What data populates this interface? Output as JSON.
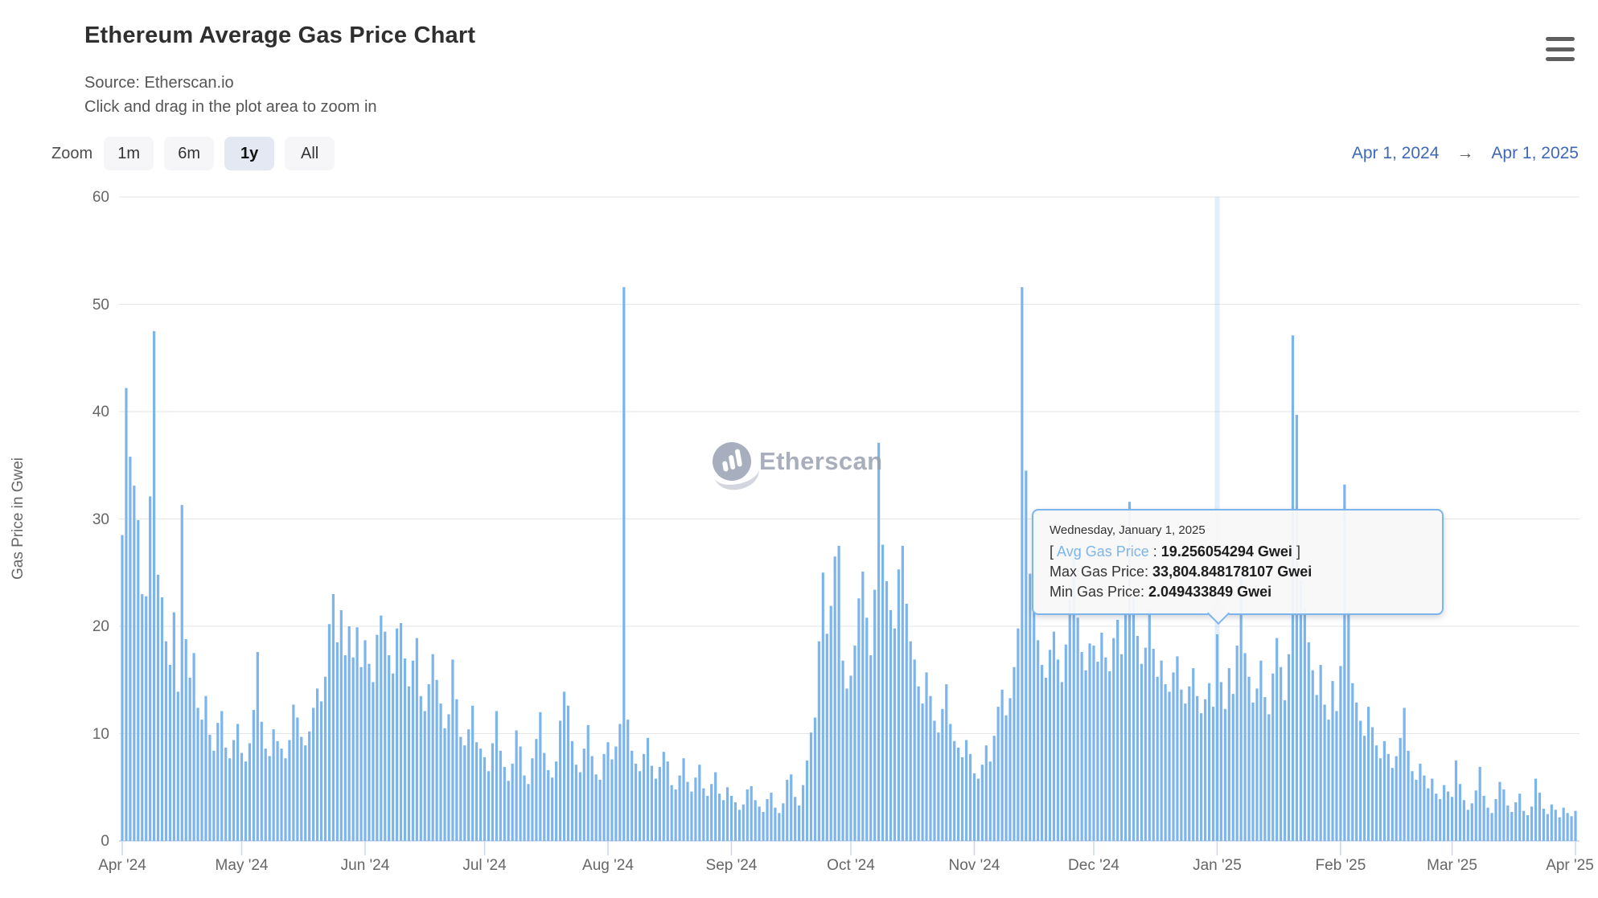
{
  "header": {
    "title": "Ethereum Average Gas Price Chart",
    "source_line": "Source: Etherscan.io",
    "hint_line": "Click and drag in the plot area to zoom in"
  },
  "menu": {
    "icon": "hamburger-menu-icon"
  },
  "range_selector": {
    "zoom_label": "Zoom",
    "buttons": [
      {
        "label": "1m",
        "active": false
      },
      {
        "label": "6m",
        "active": false
      },
      {
        "label": "1y",
        "active": true
      },
      {
        "label": "All",
        "active": false
      }
    ],
    "from_date": "Apr 1, 2024",
    "arrow": "→",
    "to_date": "Apr 1, 2025"
  },
  "watermark": {
    "icon": "etherscan-logo-icon",
    "text": "Etherscan"
  },
  "tooltip": {
    "date": "Wednesday, January 1, 2025",
    "bracket_open": "[",
    "avg_label": "Avg Gas Price",
    "avg_separator": ":",
    "avg_value": "19.256054294 Gwei",
    "bracket_close": "]",
    "max_label": "Max Gas Price:",
    "max_value": "33,804.848178107 Gwei",
    "min_label": "Min Gas Price:",
    "min_value": "2.049433849 Gwei",
    "point_index": 275
  },
  "chart_data": {
    "type": "bar",
    "title": "Ethereum Average Gas Price Chart",
    "subtitle": "Source: Etherscan.io",
    "xlabel": "",
    "ylabel": "Gas Price in Gwei",
    "unit": "Gwei",
    "ylim": [
      0,
      60
    ],
    "yticks": [
      0,
      10,
      20,
      30,
      40,
      50,
      60
    ],
    "grid": true,
    "legend": false,
    "bar_color": "#7cb5ec",
    "grid_color": "#e6e6e6",
    "axis_color": "#ccd6eb",
    "start_date": "2024-04-01",
    "end_date": "2025-04-01",
    "frequency": "daily",
    "xticks": [
      {
        "label": "Apr '24",
        "day": 0
      },
      {
        "label": "May '24",
        "day": 30
      },
      {
        "label": "Jun '24",
        "day": 61
      },
      {
        "label": "Jul '24",
        "day": 91
      },
      {
        "label": "Aug '24",
        "day": 122
      },
      {
        "label": "Sep '24",
        "day": 153
      },
      {
        "label": "Oct '24",
        "day": 183
      },
      {
        "label": "Nov '24",
        "day": 214
      },
      {
        "label": "Dec '24",
        "day": 244
      },
      {
        "label": "Jan '25",
        "day": 275
      },
      {
        "label": "Feb '25",
        "day": 306
      },
      {
        "label": "Mar '25",
        "day": 334
      },
      {
        "label": "Apr '25",
        "day": 365
      }
    ],
    "highlighted_point": {
      "date": "2025-01-01",
      "avg_gwei": 19.256054294,
      "max_gwei": 33804.848178107,
      "min_gwei": 2.049433849
    },
    "series": [
      {
        "name": "Avg Gas Price",
        "values": [
          28.5,
          42.2,
          35.8,
          33.1,
          29.9,
          23.0,
          22.8,
          32.1,
          47.5,
          24.8,
          22.7,
          18.6,
          16.4,
          21.3,
          13.9,
          31.3,
          18.8,
          15.2,
          17.5,
          12.4,
          11.3,
          13.5,
          9.9,
          8.4,
          11.0,
          12.1,
          8.7,
          7.7,
          9.4,
          10.9,
          8.2,
          7.4,
          9.1,
          12.2,
          17.6,
          11.1,
          8.6,
          7.9,
          10.4,
          9.3,
          8.6,
          7.7,
          9.4,
          12.7,
          11.5,
          9.7,
          8.9,
          10.2,
          12.4,
          14.2,
          13.0,
          15.3,
          20.2,
          23.0,
          18.5,
          21.5,
          17.3,
          20.0,
          17.1,
          19.9,
          16.2,
          18.7,
          16.5,
          14.8,
          19.2,
          21.0,
          19.5,
          17.3,
          15.6,
          19.8,
          20.3,
          17.0,
          14.4,
          16.8,
          18.9,
          13.5,
          12.1,
          14.6,
          17.4,
          15.0,
          12.8,
          10.5,
          11.8,
          16.9,
          13.2,
          9.7,
          8.9,
          10.4,
          12.6,
          9.2,
          8.6,
          7.8,
          6.5,
          9.1,
          12.1,
          8.4,
          6.9,
          5.6,
          7.2,
          10.3,
          8.8,
          6.1,
          5.3,
          7.7,
          9.5,
          12.0,
          8.2,
          6.6,
          5.9,
          7.4,
          11.2,
          13.9,
          12.6,
          9.3,
          7.1,
          6.4,
          8.6,
          10.8,
          7.9,
          6.2,
          5.7,
          8.1,
          9.2,
          7.6,
          8.8,
          10.9,
          51.6,
          11.3,
          8.4,
          7.2,
          6.5,
          8.1,
          9.6,
          7.0,
          5.8,
          6.9,
          8.3,
          7.4,
          5.2,
          4.8,
          6.1,
          7.7,
          5.5,
          4.6,
          5.9,
          7.1,
          4.9,
          4.2,
          5.3,
          6.4,
          4.4,
          3.8,
          5.0,
          4.2,
          3.6,
          2.9,
          3.4,
          4.8,
          5.1,
          3.8,
          3.2,
          2.7,
          3.9,
          4.5,
          3.1,
          2.6,
          3.5,
          5.7,
          6.2,
          4.1,
          3.3,
          5.2,
          7.5,
          10.1,
          11.5,
          18.6,
          25.0,
          19.3,
          21.9,
          26.5,
          27.5,
          16.8,
          14.2,
          15.4,
          18.2,
          22.6,
          25.1,
          20.8,
          17.3,
          23.4,
          37.1,
          27.6,
          24.2,
          21.5,
          19.8,
          25.3,
          27.5,
          22.1,
          18.6,
          16.9,
          14.4,
          12.8,
          15.7,
          13.5,
          11.2,
          10.1,
          12.3,
          14.6,
          10.9,
          9.3,
          8.7,
          7.8,
          9.4,
          8.1,
          6.3,
          5.8,
          7.1,
          8.9,
          7.4,
          9.8,
          12.5,
          14.1,
          11.7,
          13.3,
          16.2,
          19.8,
          51.6,
          34.5,
          24.9,
          21.3,
          18.7,
          16.4,
          15.2,
          17.8,
          19.5,
          16.9,
          14.8,
          18.3,
          22.5,
          26.9,
          20.8,
          17.6,
          15.9,
          18.4,
          18.2,
          16.7,
          19.4,
          17.1,
          15.8,
          18.9,
          20.6,
          17.4,
          21.2,
          31.6,
          22.8,
          19.1,
          16.5,
          18.0,
          21.5,
          17.9,
          15.3,
          16.8,
          14.6,
          13.9,
          15.7,
          17.2,
          14.1,
          12.8,
          14.4,
          16.1,
          13.5,
          11.9,
          13.2,
          14.7,
          12.5,
          19.256054294,
          14.8,
          12.3,
          16.1,
          13.7,
          18.2,
          24.9,
          17.5,
          15.3,
          12.9,
          14.2,
          16.8,
          13.4,
          11.8,
          15.6,
          18.9,
          16.2,
          13.1,
          17.4,
          47.1,
          39.7,
          24.3,
          21.7,
          18.5,
          15.9,
          13.6,
          16.4,
          12.7,
          11.3,
          14.9,
          12.1,
          16.3,
          33.2,
          21.4,
          14.7,
          12.9,
          11.2,
          9.8,
          12.5,
          10.6,
          8.9,
          7.7,
          9.3,
          8.1,
          6.8,
          7.9,
          9.6,
          12.4,
          8.4,
          6.5,
          5.7,
          7.2,
          6.1,
          4.9,
          5.8,
          4.4,
          3.9,
          5.2,
          4.6,
          4.1,
          7.5,
          5.3,
          3.8,
          2.9,
          3.5,
          4.7,
          6.9,
          4.2,
          3.1,
          2.6,
          3.9,
          5.5,
          4.8,
          3.3,
          2.7,
          3.6,
          4.4,
          2.8,
          2.4,
          3.2,
          5.8,
          4.5,
          3.0,
          2.5,
          3.4,
          2.9,
          2.2,
          3.1,
          2.6,
          2.3,
          2.8
        ]
      }
    ]
  }
}
